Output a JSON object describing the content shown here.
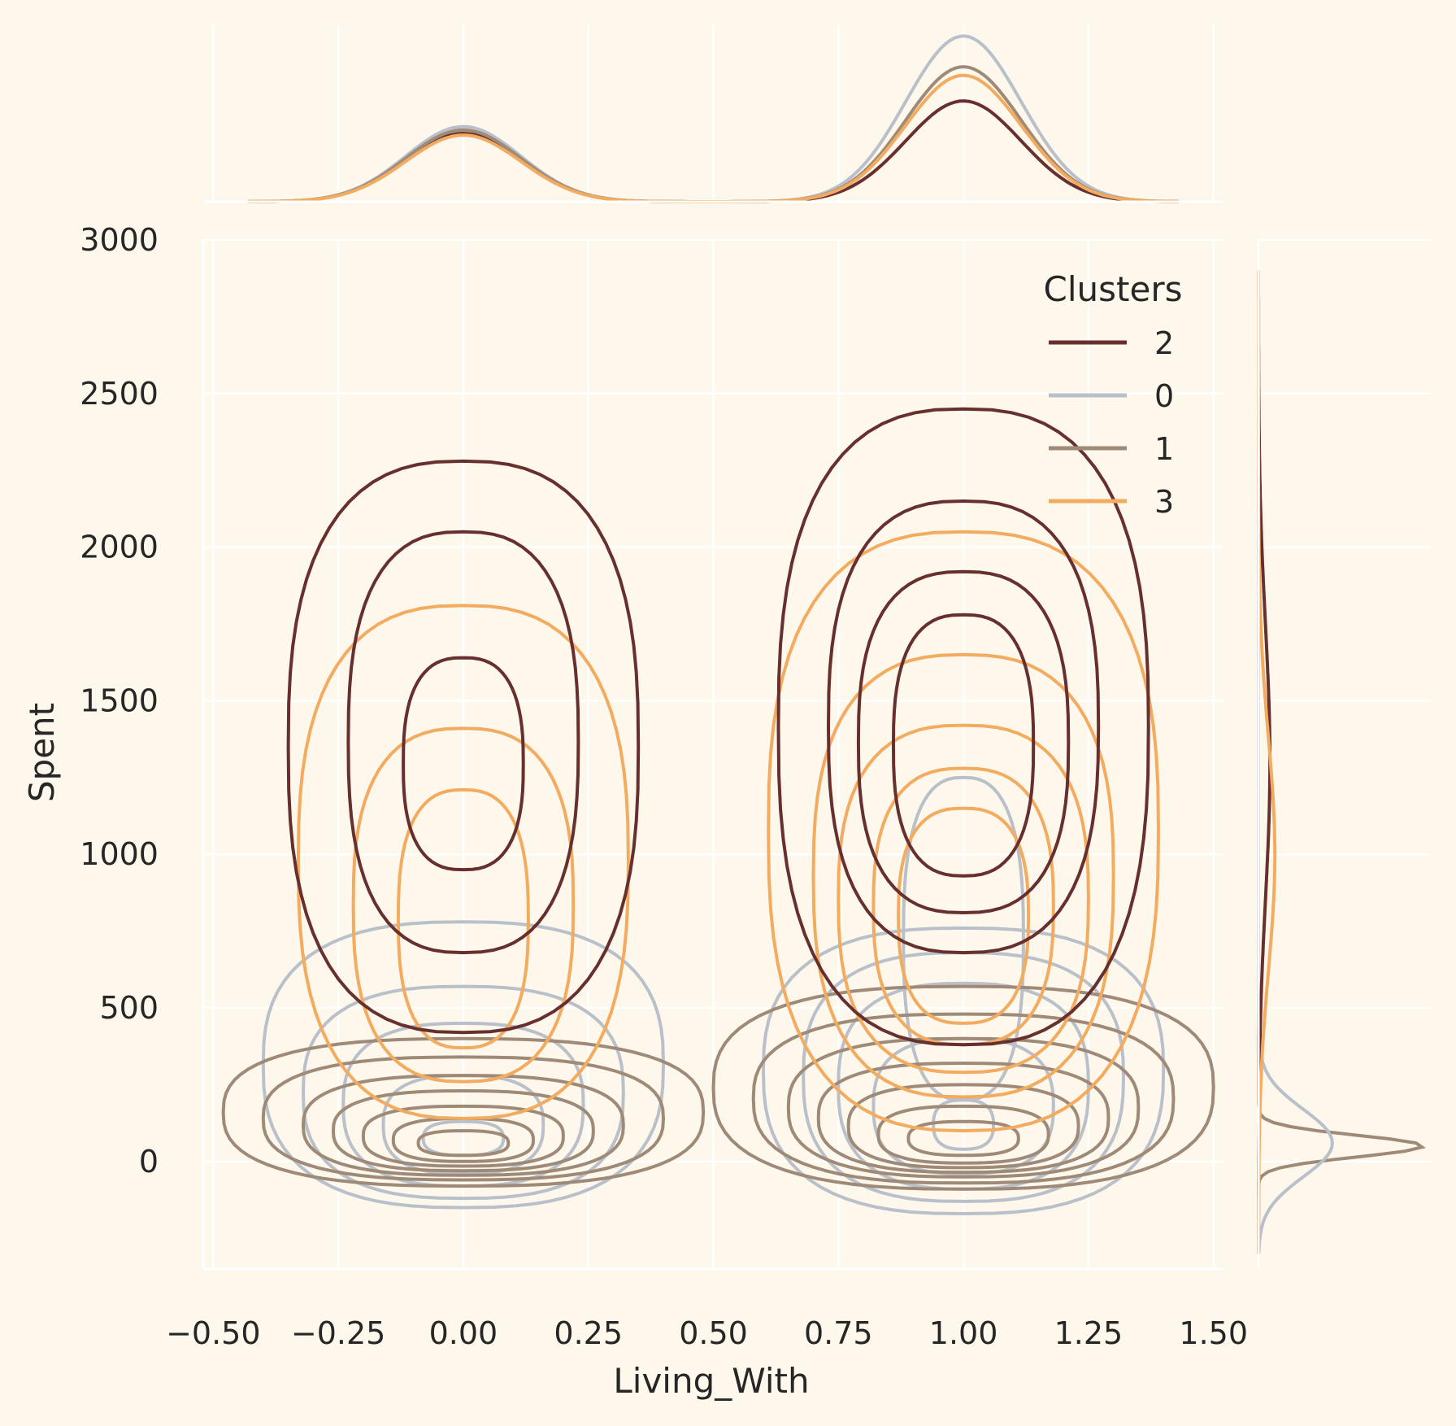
{
  "chart_data": {
    "type": "kde-jointplot",
    "xlabel": "Living_With",
    "ylabel": "Spent",
    "xlim": [
      -0.52,
      1.52
    ],
    "ylim": [
      -350,
      3000
    ],
    "xticks": [
      -0.5,
      -0.25,
      0.0,
      0.25,
      0.5,
      0.75,
      1.0,
      1.25,
      1.5
    ],
    "xtick_labels": [
      "−0.50",
      "−0.25",
      "0.00",
      "0.25",
      "0.50",
      "0.75",
      "1.00",
      "1.25",
      "1.50"
    ],
    "yticks": [
      0,
      500,
      1000,
      1500,
      2000,
      2500,
      3000
    ],
    "ytick_labels": [
      "0",
      "500",
      "1000",
      "1500",
      "2000",
      "2500",
      "3000"
    ],
    "grid": true,
    "legend": {
      "title": "Clusters",
      "placement": "top-right",
      "entries": [
        {
          "label": "2",
          "color": "#682F2F"
        },
        {
          "label": "0",
          "color": "#B9C0C9"
        },
        {
          "label": "1",
          "color": "#9F8A78"
        },
        {
          "label": "3",
          "color": "#F3AB60"
        }
      ]
    },
    "background_color": "#FEF8EC",
    "series": [
      {
        "name": "2",
        "color": "#682F2F",
        "x_density_peaks": [
          {
            "x": 0.0,
            "height": 0.4
          },
          {
            "x": 1.0,
            "height": 0.59
          }
        ],
        "blobs": [
          {
            "cx": 0.0,
            "cy": 1350,
            "rx": [
              0.35,
              0.23,
              0.12
            ],
            "yhigh": [
              2280,
              2050,
              1640
            ],
            "ylow": [
              420,
              680,
              950
            ]
          },
          {
            "cx": 1.0,
            "cy": 1400,
            "rx": [
              0.37,
              0.27,
              0.21,
              0.14
            ],
            "yhigh": [
              2450,
              2150,
              1920,
              1780
            ],
            "ylow": [
              380,
              680,
              810,
              930
            ]
          }
        ]
      },
      {
        "name": "0",
        "color": "#B9C0C9",
        "x_density_peaks": [
          {
            "x": 0.0,
            "height": 0.44
          },
          {
            "x": 1.0,
            "height": 0.97
          }
        ],
        "blobs": [
          {
            "cx": 0.0,
            "cy": 250,
            "rx": [
              0.4,
              0.32,
              0.24,
              0.16,
              0.08
            ],
            "yhigh": [
              780,
              570,
              450,
              280,
              130
            ],
            "ylow": [
              -150,
              -120,
              -80,
              -40,
              20
            ]
          },
          {
            "cx": 1.0,
            "cy": 300,
            "rx": [
              0.4,
              0.32,
              0.25,
              0.18,
              0.12,
              0.06
            ],
            "yhigh": [
              760,
              680,
              580,
              400,
              1250,
              200
            ],
            "ylow": [
              -170,
              -130,
              -90,
              -40,
              200,
              40
            ]
          }
        ]
      },
      {
        "name": "1",
        "color": "#9F8A78",
        "x_density_peaks": [
          {
            "x": 0.0,
            "height": 0.42
          },
          {
            "x": 1.0,
            "height": 0.79
          }
        ],
        "blobs": [
          {
            "cx": 0.0,
            "cy": 60,
            "rx": [
              0.48,
              0.4,
              0.32,
              0.26,
              0.2,
              0.14,
              0.09
            ],
            "yhigh": [
              400,
              340,
              280,
              230,
              180,
              140,
              100
            ],
            "ylow": [
              -80,
              -60,
              -45,
              -30,
              -15,
              0,
              20
            ]
          },
          {
            "cx": 1.0,
            "cy": 80,
            "rx": [
              0.5,
              0.42,
              0.35,
              0.29,
              0.23,
              0.17,
              0.11
            ],
            "yhigh": [
              570,
              480,
              400,
              320,
              250,
              180,
              130
            ],
            "ylow": [
              -90,
              -70,
              -50,
              -35,
              -20,
              -5,
              20
            ]
          }
        ]
      },
      {
        "name": "3",
        "color": "#F3AB60",
        "x_density_peaks": [
          {
            "x": 0.0,
            "height": 0.39
          },
          {
            "x": 1.0,
            "height": 0.74
          }
        ],
        "blobs": [
          {
            "cx": 0.0,
            "cy": 950,
            "rx": [
              0.33,
              0.22,
              0.13
            ],
            "yhigh": [
              1810,
              1410,
              1210
            ],
            "ylow": [
              140,
              260,
              370
            ]
          },
          {
            "cx": 1.0,
            "cy": 1000,
            "rx": [
              0.39,
              0.3,
              0.25,
              0.18,
              0.13
            ],
            "yhigh": [
              2050,
              1650,
              1420,
              1280,
              1150
            ],
            "ylow": [
              100,
              210,
              290,
              380,
              450
            ]
          }
        ]
      }
    ],
    "y_marginal": {
      "peaks": [
        {
          "series": "1",
          "y": 50,
          "height": 1.0,
          "sd": 35
        },
        {
          "series": "0",
          "y": 60,
          "height": 0.45,
          "sd": 110
        },
        {
          "series": "2",
          "y": 1300,
          "height": 0.07,
          "sd": 450
        },
        {
          "series": "3",
          "y": 1000,
          "height": 0.1,
          "sd": 380
        }
      ]
    }
  }
}
